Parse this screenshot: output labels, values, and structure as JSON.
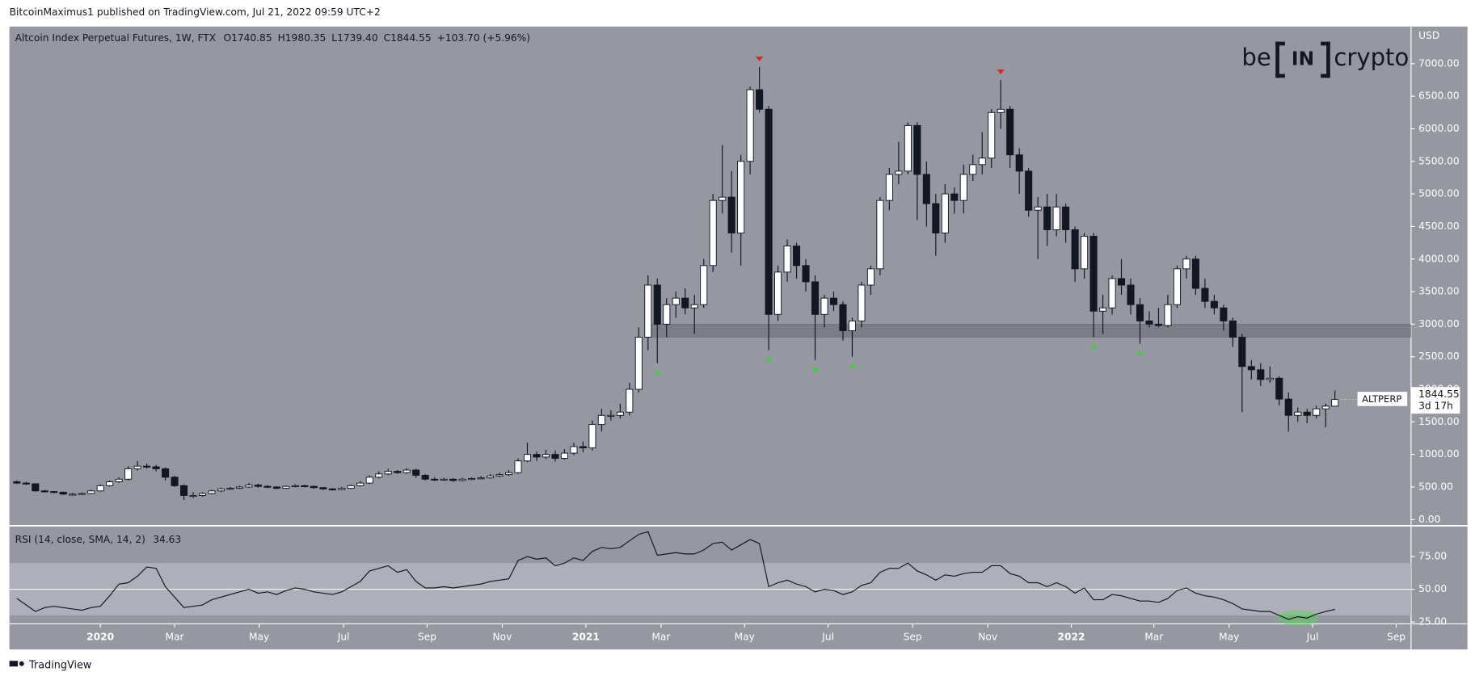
{
  "header": {
    "publisher": "BitcoinMaximus1 published on TradingView.com, Jul 21, 2022 09:59 UTC+2"
  },
  "logo": [
    "be",
    "IN",
    "crypto"
  ],
  "footer": "TradingView",
  "chart_data": [
    {
      "type": "candlestick",
      "title": "Altcoin Index Perpetual Futures, 1W, FTX",
      "legend_values": [
        {
          "key": "O",
          "value": "1740.85"
        },
        {
          "key": "H",
          "value": "1980.35"
        },
        {
          "key": "L",
          "value": "1739.40"
        },
        {
          "key": "C",
          "value": "1844.55"
        }
      ],
      "change": "+103.70 (+5.96%)",
      "y_label": "USD",
      "up_color": "#ffffff",
      "down_color": "#131722",
      "open": [
        580,
        560,
        550,
        440,
        430,
        420,
        390,
        390,
        400,
        440,
        520,
        580,
        620,
        780,
        820,
        810,
        780,
        650,
        520,
        370,
        370,
        400,
        440,
        470,
        480,
        500,
        530,
        510,
        500,
        480,
        510,
        520,
        510,
        490,
        470,
        460,
        480,
        520,
        560,
        650,
        700,
        740,
        720,
        760,
        680,
        620,
        610,
        620,
        600,
        620,
        630,
        640,
        670,
        690,
        720,
        900,
        1000,
        960,
        1000,
        940,
        1020,
        1120,
        1100,
        1460,
        1600,
        1600,
        1650,
        2000,
        2800,
        3600,
        3000,
        3300,
        3400,
        3250,
        3300,
        3900,
        4900,
        4950,
        4400,
        5500,
        6600,
        6300,
        3150,
        3800,
        4200,
        3900,
        3650,
        3150,
        3400,
        3300,
        2900,
        3050,
        3600,
        3850,
        4900,
        5300,
        5350,
        6050,
        5300,
        4850,
        4400,
        5000,
        4900,
        5300,
        5450,
        5550,
        6250,
        6300,
        5600,
        5350,
        4750,
        4800,
        4450,
        4800,
        4450,
        3850,
        4350,
        3200,
        3250,
        3700,
        3600,
        3300,
        3050,
        3000,
        2980,
        3300,
        3850,
        4000,
        3550,
        3350,
        3250,
        3050,
        2800,
        2350,
        2300,
        2150,
        2170,
        1850,
        1600,
        1650,
        1600,
        1700,
        1740.85
      ],
      "high": [
        600,
        580,
        555,
        455,
        440,
        430,
        410,
        415,
        455,
        540,
        600,
        650,
        820,
        900,
        860,
        840,
        800,
        670,
        540,
        420,
        420,
        460,
        490,
        500,
        520,
        560,
        550,
        530,
        510,
        525,
        545,
        535,
        520,
        500,
        485,
        500,
        540,
        590,
        680,
        740,
        780,
        760,
        790,
        780,
        700,
        650,
        640,
        635,
        640,
        650,
        665,
        700,
        720,
        760,
        940,
        1180,
        1040,
        1070,
        1060,
        1080,
        1180,
        1200,
        1520,
        1700,
        1680,
        1780,
        2100,
        2950,
        3750,
        3700,
        3400,
        3500,
        3550,
        3450,
        4000,
        5000,
        5750,
        5350,
        5600,
        6650,
        6950,
        6350,
        3900,
        4300,
        4250,
        4000,
        3750,
        3450,
        3500,
        3350,
        3100,
        3650,
        3900,
        4950,
        5400,
        5800,
        6100,
        6100,
        5500,
        5000,
        5150,
        5100,
        5450,
        5600,
        5950,
        6300,
        6750,
        6350,
        5700,
        5400,
        4950,
        5000,
        5000,
        4850,
        4500,
        4400,
        4400,
        3450,
        3750,
        4000,
        3700,
        3400,
        3200,
        3250,
        3450,
        3900,
        4050,
        4050,
        3700,
        3450,
        3300,
        3100,
        2850,
        2450,
        2400,
        2350,
        2200,
        1950,
        1720,
        1700,
        1750,
        1780,
        1980.35
      ],
      "low": [
        545,
        530,
        430,
        415,
        405,
        380,
        375,
        380,
        390,
        430,
        505,
        560,
        600,
        750,
        780,
        740,
        600,
        500,
        300,
        330,
        350,
        385,
        420,
        450,
        465,
        485,
        490,
        485,
        465,
        470,
        495,
        495,
        475,
        455,
        445,
        450,
        470,
        505,
        545,
        630,
        680,
        700,
        700,
        640,
        600,
        590,
        595,
        580,
        585,
        605,
        615,
        625,
        650,
        670,
        700,
        880,
        900,
        930,
        890,
        920,
        990,
        1030,
        1060,
        1350,
        1520,
        1550,
        1600,
        1950,
        2600,
        2400,
        2800,
        3100,
        3150,
        2850,
        3250,
        3800,
        4700,
        4100,
        3900,
        5300,
        6250,
        2600,
        3050,
        3650,
        3700,
        3500,
        2450,
        2950,
        3200,
        2750,
        2500,
        2950,
        3450,
        3750,
        4750,
        5150,
        5300,
        4600,
        4500,
        4050,
        4250,
        4700,
        4700,
        5200,
        5300,
        5400,
        6000,
        5400,
        5000,
        4650,
        4000,
        4200,
        4350,
        4250,
        3650,
        3700,
        2800,
        2850,
        3150,
        3450,
        3150,
        2700,
        2950,
        2950,
        2950,
        3250,
        3700,
        3450,
        3250,
        3150,
        2900,
        2650,
        1650,
        2150,
        2050,
        2100,
        1750,
        1350,
        1500,
        1480,
        1550,
        1420,
        1739.4
      ],
      "close": [
        560,
        550,
        440,
        430,
        420,
        390,
        390,
        400,
        440,
        520,
        580,
        620,
        780,
        820,
        810,
        780,
        650,
        520,
        370,
        370,
        400,
        440,
        470,
        480,
        500,
        530,
        510,
        500,
        480,
        510,
        520,
        510,
        490,
        470,
        460,
        480,
        520,
        560,
        650,
        700,
        740,
        720,
        760,
        680,
        620,
        610,
        620,
        600,
        620,
        630,
        640,
        670,
        690,
        720,
        900,
        1000,
        960,
        1000,
        940,
        1020,
        1120,
        1100,
        1460,
        1600,
        1600,
        1650,
        2000,
        2800,
        3600,
        3000,
        3300,
        3400,
        3250,
        3300,
        3900,
        4900,
        4950,
        4400,
        5500,
        6600,
        6300,
        3150,
        3800,
        4200,
        3900,
        3650,
        3150,
        3400,
        3300,
        2900,
        3050,
        3600,
        3850,
        4900,
        5300,
        5350,
        6050,
        5300,
        4850,
        4400,
        5000,
        4900,
        5300,
        5450,
        5550,
        6250,
        6300,
        5600,
        5350,
        4750,
        4800,
        4450,
        4800,
        4450,
        3850,
        4350,
        3200,
        3250,
        3700,
        3600,
        3300,
        3050,
        3000,
        2980,
        3300,
        3850,
        4000,
        3550,
        3350,
        3250,
        3050,
        2800,
        2350,
        2300,
        2150,
        2170,
        1850,
        1600,
        1650,
        1600,
        1700,
        1740.85,
        1844.55
      ],
      "zone": [
        2800,
        3000
      ],
      "xlim": [
        -0.8,
        150.2
      ],
      "ylim": [
        -73,
        7570
      ],
      "yticks": [
        {
          "value": 0,
          "label": "0.00"
        },
        {
          "value": 500,
          "label": "500.00"
        },
        {
          "value": 1000,
          "label": "1000.00"
        },
        {
          "value": 1500,
          "label": "1500.00"
        },
        {
          "value": 2000,
          "label": "2000.00"
        },
        {
          "value": 2500,
          "label": "2500.00"
        },
        {
          "value": 3000,
          "label": "3000.00"
        },
        {
          "value": 3500,
          "label": "3500.00"
        },
        {
          "value": 4000,
          "label": "4000.00"
        },
        {
          "value": 4500,
          "label": "4500.00"
        },
        {
          "value": 5000,
          "label": "5000.00"
        },
        {
          "value": 5500,
          "label": "5500.00"
        },
        {
          "value": 6000,
          "label": "6000.00"
        },
        {
          "value": 6500,
          "label": "6500.00"
        },
        {
          "value": 7000,
          "label": "7000.00"
        }
      ],
      "price_tag": {
        "symbol": "ALTPERP",
        "value": "1844.55",
        "countdown": "3d 17h"
      }
    },
    {
      "type": "line",
      "title": "RSI (14, close, SMA, 14, 2)",
      "last_value": "34.63",
      "color": "#131722",
      "values": [
        43,
        38,
        33,
        36,
        37,
        36,
        35,
        34,
        36,
        37,
        45,
        54,
        55,
        60,
        67,
        66,
        52,
        44,
        36,
        37,
        38,
        42,
        44,
        46,
        48,
        50,
        47,
        48,
        46,
        49,
        51,
        50,
        48,
        47,
        46,
        48,
        52,
        56,
        64,
        66,
        68,
        63,
        65,
        56,
        51,
        51,
        52,
        51,
        52,
        53,
        54,
        56,
        57,
        58,
        72,
        75,
        73,
        74,
        68,
        70,
        74,
        72,
        79,
        82,
        81,
        82,
        87,
        92,
        94,
        76,
        77,
        78,
        77,
        77,
        80,
        85,
        86,
        80,
        84,
        88,
        85,
        52,
        55,
        57,
        54,
        52,
        48,
        50,
        49,
        46,
        48,
        53,
        55,
        63,
        66,
        66,
        70,
        64,
        61,
        57,
        61,
        60,
        62,
        63,
        63,
        68,
        68,
        62,
        60,
        55,
        55,
        52,
        55,
        52,
        47,
        51,
        42,
        42,
        46,
        45,
        43,
        41,
        41,
        40,
        43,
        49,
        51,
        47,
        45,
        44,
        42,
        39,
        35,
        34,
        33,
        33,
        30,
        27,
        29,
        28,
        31,
        33,
        34.63
      ],
      "band": [
        30,
        70
      ],
      "xlim": [
        -0.8,
        150.2
      ],
      "ylim": [
        23.55,
        97.5
      ],
      "yticks": [
        {
          "value": 25,
          "label": "25.00"
        },
        {
          "value": 50,
          "label": "50.00"
        },
        {
          "value": 75,
          "label": "75.00"
        }
      ],
      "xticks": [
        {
          "value": 9,
          "label": "2020"
        },
        {
          "value": 17,
          "label": "Mar"
        },
        {
          "value": 26.1,
          "label": "May"
        },
        {
          "value": 35.2,
          "label": "Jul"
        },
        {
          "value": 44.2,
          "label": "Sep"
        },
        {
          "value": 52.3,
          "label": "Nov"
        },
        {
          "value": 61.3,
          "label": "2021"
        },
        {
          "value": 69.4,
          "label": "Mar"
        },
        {
          "value": 78.4,
          "label": "May"
        },
        {
          "value": 87.4,
          "label": "Jul"
        },
        {
          "value": 96.5,
          "label": "Sep"
        },
        {
          "value": 104.6,
          "label": "Nov"
        },
        {
          "value": 113.6,
          "label": "2022"
        },
        {
          "value": 122.5,
          "label": "Mar"
        },
        {
          "value": 130.6,
          "label": "May"
        },
        {
          "value": 139.6,
          "label": "Jul"
        },
        {
          "value": 148.6,
          "label": "Sep"
        }
      ]
    }
  ]
}
